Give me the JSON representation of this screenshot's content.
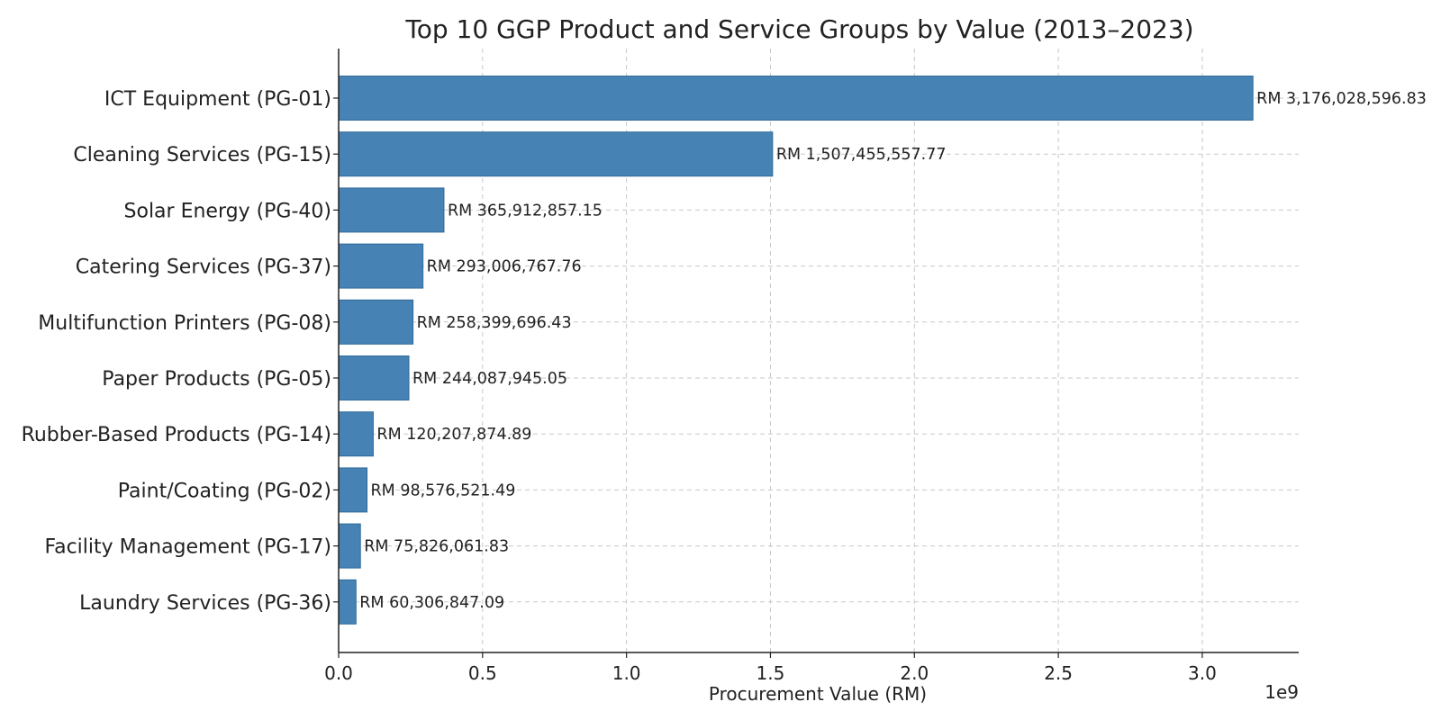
{
  "chart_data": {
    "type": "bar",
    "orientation": "horizontal",
    "title": "Top 10 GGP Product and Service Groups by Value (2013–2023)",
    "xlabel": "Procurement Value (RM)",
    "ylabel": "",
    "offset_text": "1e9",
    "xlim": [
      0,
      3.335
    ],
    "xticks": [
      0,
      0.5,
      1.0,
      1.5,
      2.0,
      2.5,
      3.0
    ],
    "xtick_labels": [
      "0.0",
      "0.5",
      "1.0",
      "1.5",
      "2.0",
      "2.5",
      "3.0"
    ],
    "grid": true,
    "bar_color": "#4682b4",
    "categories": [
      "ICT Equipment (PG-01)",
      "Cleaning Services (PG-15)",
      "Solar Energy (PG-40)",
      "Catering Services (PG-37)",
      "Multifunction Printers (PG-08)",
      "Paper Products (PG-05)",
      "Rubber-Based Products (PG-14)",
      "Paint/Coating (PG-02)",
      "Facility Management (PG-17)",
      "Laundry Services (PG-36)"
    ],
    "values": [
      3176028596.83,
      1507455557.77,
      365912857.15,
      293006767.76,
      258399696.43,
      244087945.05,
      120207874.89,
      98576521.49,
      75826061.83,
      60306847.09
    ],
    "value_labels": [
      "RM 3,176,028,596.83",
      "RM 1,507,455,557.77",
      "RM 365,912,857.15",
      "RM 293,006,767.76",
      "RM 258,399,696.43",
      "RM 244,087,945.05",
      "RM 120,207,874.89",
      "RM 98,576,521.49",
      "RM 75,826,061.83",
      "RM 60,306,847.09"
    ]
  }
}
